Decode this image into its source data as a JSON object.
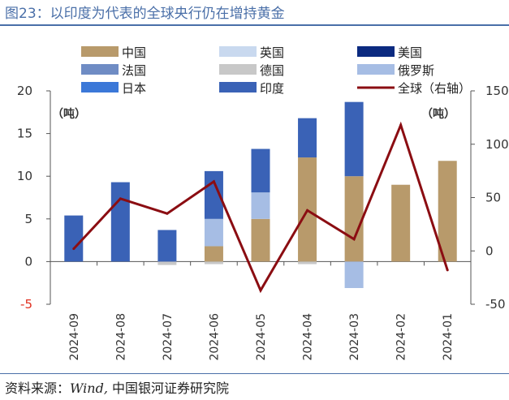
{
  "title": "图23：以印度为代表的全球央行仍在增持黄金",
  "source": {
    "prefix": "资料来源：",
    "wind": "Wind,",
    "suffix": " 中国银河证券研究院"
  },
  "colors": {
    "accent": "#4a6fa8",
    "中国": "#b89a6b",
    "英国": "#c9d9ef",
    "美国": "#0b2a80",
    "法国": "#6f8cc4",
    "德国": "#c8c8c8",
    "俄罗斯": "#a6bde4",
    "日本": "#3b78d8",
    "印度": "#3a62b6",
    "全球（右轴）": "#8b0d12"
  },
  "chart_data": {
    "type": "bar",
    "stacked": true,
    "categories": [
      "2024-09",
      "2024-08",
      "2024-07",
      "2024-06",
      "2024-05",
      "2024-04",
      "2024-03",
      "2024-02",
      "2024-01"
    ],
    "series": [
      {
        "name": "中国",
        "values": [
          0,
          0,
          0,
          1.8,
          5.0,
          12.2,
          10.0,
          9.0,
          11.8
        ]
      },
      {
        "name": "英国",
        "values": [
          0,
          0,
          0,
          0,
          0,
          0,
          0,
          0,
          0
        ]
      },
      {
        "name": "美国",
        "values": [
          0,
          0,
          0,
          0,
          0,
          0,
          0,
          0,
          0
        ]
      },
      {
        "name": "法国",
        "values": [
          0,
          0,
          0,
          0,
          0,
          0,
          0,
          0,
          0
        ]
      },
      {
        "name": "德国",
        "values": [
          0,
          0,
          -0.4,
          -0.3,
          0,
          -0.3,
          0,
          0,
          0
        ]
      },
      {
        "name": "俄罗斯",
        "values": [
          0,
          0,
          0,
          3.2,
          3.1,
          0,
          -3.1,
          0,
          0
        ]
      },
      {
        "name": "日本",
        "values": [
          0,
          0,
          0,
          0,
          0,
          0,
          0,
          0,
          0
        ]
      },
      {
        "name": "印度",
        "values": [
          5.4,
          9.3,
          3.7,
          5.6,
          5.1,
          4.6,
          8.7,
          0,
          0
        ]
      }
    ],
    "line": {
      "name": "全球（右轴）",
      "axis": "right",
      "values": [
        2,
        49,
        35,
        65,
        -37,
        38,
        11,
        118,
        -18
      ]
    },
    "yleft": {
      "lim": [
        -5,
        20
      ],
      "ticks": [
        -5,
        0,
        5,
        10,
        15,
        20
      ],
      "unit": "（吨）"
    },
    "yright": {
      "lim": [
        -50,
        150
      ],
      "ticks": [
        "-50",
        "0",
        "50",
        "100",
        "150"
      ],
      "unit": "（吨）"
    },
    "legend": {
      "position": "top",
      "entries": [
        "中国",
        "英国",
        "美国",
        "法国",
        "德国",
        "俄罗斯",
        "日本",
        "印度",
        "全球（右轴）"
      ]
    },
    "grid": false
  }
}
